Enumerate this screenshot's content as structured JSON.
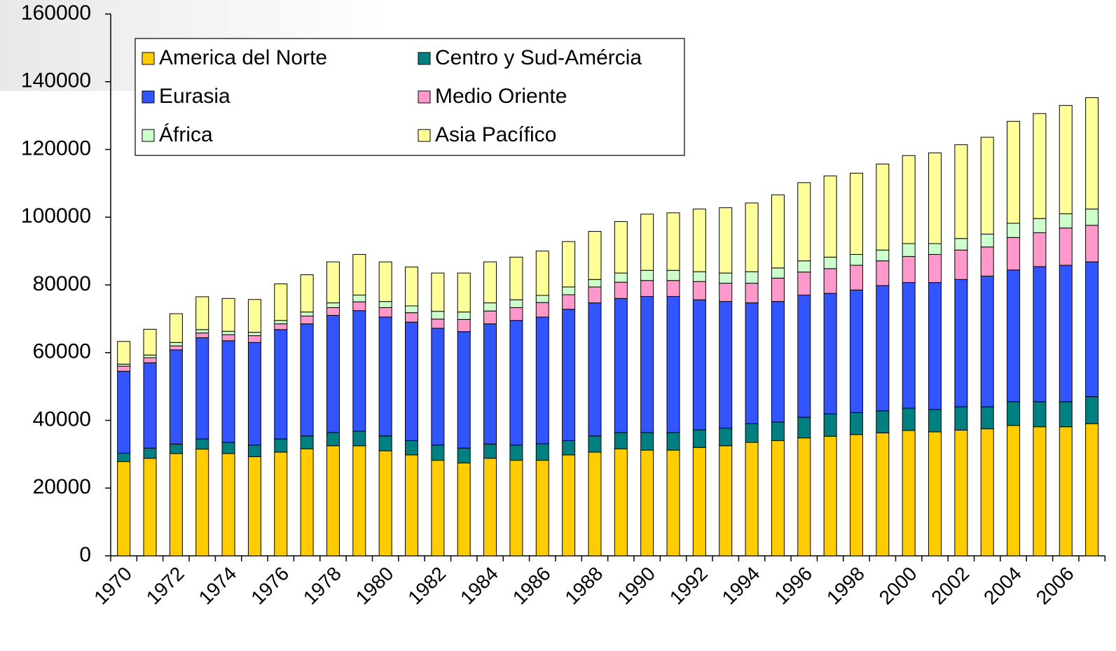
{
  "chart_data": {
    "type": "stacked_bar",
    "categories": [
      "1970",
      null,
      "1972",
      null,
      "1974",
      null,
      "1976",
      null,
      "1978",
      null,
      "1980",
      null,
      "1982",
      null,
      "1984",
      null,
      "1986",
      null,
      "1988",
      null,
      "1990",
      null,
      "1992",
      null,
      "1994",
      null,
      "1996",
      null,
      "1998",
      null,
      "2000",
      null,
      "2002",
      null,
      "2004",
      null,
      "2006",
      null
    ],
    "series": [
      {
        "name": "America del Norte",
        "color": "#FFCC00",
        "values": [
          27800,
          28800,
          30200,
          31500,
          30200,
          29300,
          30600,
          31600,
          32500,
          32500,
          31000,
          29800,
          28200,
          27400,
          28800,
          28200,
          28200,
          29800,
          30600,
          31600,
          31200,
          31200,
          32000,
          32500,
          33500,
          34000,
          34800,
          35300,
          35800,
          36300,
          37000,
          36600,
          37100,
          37500,
          38500,
          38100,
          38100,
          39000
        ]
      },
      {
        "name": "Centro y Sud-Amércia",
        "color": "#008080",
        "values": [
          2500,
          3000,
          2800,
          3000,
          3300,
          3400,
          3900,
          3800,
          3900,
          4300,
          4400,
          4200,
          4500,
          4400,
          4200,
          4500,
          4900,
          4200,
          4800,
          4800,
          5200,
          5200,
          5200,
          5200,
          5500,
          5500,
          6100,
          6600,
          6500,
          6500,
          6600,
          6600,
          6900,
          6500,
          7000,
          7400,
          7400,
          8000
        ]
      },
      {
        "name": "Eurasia",
        "color": "#3355FF",
        "values": [
          24200,
          25200,
          27800,
          29900,
          30000,
          30300,
          32300,
          33100,
          34600,
          35600,
          35100,
          35000,
          34500,
          34400,
          35500,
          36800,
          37400,
          38800,
          39300,
          39600,
          40200,
          40200,
          38400,
          37400,
          35700,
          35600,
          36100,
          35600,
          36200,
          37000,
          37100,
          37500,
          37600,
          38600,
          38900,
          39900,
          40300,
          39800
        ]
      },
      {
        "name": "Medio Oriente",
        "color": "#FF99CC",
        "values": [
          1500,
          1500,
          1200,
          1400,
          1800,
          2000,
          1700,
          2300,
          2300,
          2600,
          2800,
          2800,
          2700,
          3600,
          3800,
          3800,
          4300,
          4300,
          4700,
          4800,
          4700,
          4700,
          5400,
          5400,
          5800,
          6900,
          6800,
          7300,
          7300,
          7300,
          7700,
          8300,
          8700,
          8600,
          9600,
          10000,
          11000,
          10800
        ]
      },
      {
        "name": "África",
        "color": "#CCFFCC",
        "values": [
          600,
          800,
          1000,
          1000,
          1000,
          1000,
          1000,
          1200,
          1400,
          2000,
          1800,
          2000,
          2300,
          2200,
          2400,
          2300,
          2100,
          2300,
          2200,
          2700,
          3000,
          3000,
          2900,
          3000,
          3400,
          3000,
          3300,
          3400,
          3200,
          3200,
          3800,
          3200,
          3400,
          3800,
          4200,
          4200,
          4200,
          4800
        ]
      },
      {
        "name": "Asia Pacífico",
        "color": "#FFFF99",
        "values": [
          6700,
          7600,
          8500,
          9700,
          9700,
          9700,
          10800,
          11000,
          12100,
          12000,
          11700,
          11500,
          11300,
          11500,
          12100,
          12600,
          13100,
          13400,
          14200,
          15200,
          16600,
          17000,
          18500,
          19300,
          20300,
          21600,
          23100,
          24000,
          24000,
          25400,
          26000,
          26800,
          27700,
          28600,
          30100,
          31000,
          32000,
          32900
        ]
      }
    ],
    "ylim": [
      0,
      160000
    ],
    "yticks": [
      0,
      20000,
      40000,
      60000,
      80000,
      100000,
      120000,
      140000,
      160000
    ]
  }
}
